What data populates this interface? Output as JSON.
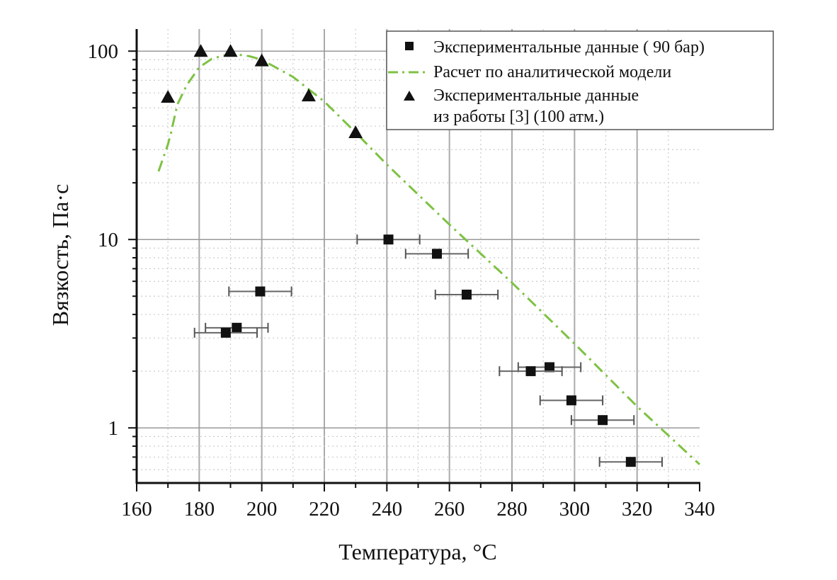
{
  "chart_data": {
    "type": "scatter",
    "xlabel": "Температура, °C",
    "ylabel": "Вязкость, Па·с",
    "xlim": [
      160,
      340
    ],
    "ylim": [
      0.51,
      131
    ],
    "yscale": "log",
    "x_ticks": [
      160,
      180,
      200,
      220,
      240,
      260,
      280,
      300,
      320,
      340
    ],
    "x_tick_labels": [
      "160",
      "180",
      "200",
      "220",
      "240",
      "260",
      "280",
      "300",
      "320",
      "340"
    ],
    "y_ticks": [
      1,
      10,
      100
    ],
    "y_tick_labels": [
      "1",
      "10",
      "100"
    ],
    "grid": true,
    "legend_position": "top-right",
    "series": [
      {
        "name": "Экспериментальные данные ( 90 бар)",
        "type": "scatter",
        "marker": "square",
        "color": "#111111",
        "x": [
          240.5,
          256,
          199.5,
          265.5,
          192,
          188.5,
          292,
          286,
          299,
          309,
          318
        ],
        "y": [
          10,
          8.4,
          5.3,
          5.1,
          3.4,
          3.2,
          2.1,
          2.0,
          1.4,
          1.1,
          0.66
        ],
        "x_error": [
          10,
          10,
          10,
          10,
          10,
          10,
          10,
          10,
          10,
          10,
          10
        ]
      },
      {
        "name": "Расчет по аналитической модели",
        "type": "line",
        "style": "dash-dot",
        "color": "#7dc242",
        "x": [
          167,
          170,
          171,
          173,
          176,
          180,
          184,
          188,
          192,
          196,
          200,
          210,
          220,
          230,
          240,
          260,
          280,
          300,
          320,
          340
        ],
        "y": [
          23,
          32,
          37,
          52,
          66,
          82,
          91,
          95,
          96,
          94,
          90,
          73,
          54,
          37,
          25,
          12,
          5.9,
          2.8,
          1.3,
          0.64
        ]
      },
      {
        "name": "Экспериментальные данные из работы [3] (100 атм.)",
        "legend_lines": [
          "Экспериментальные данные",
          "из работы [3] (100 атм.)"
        ],
        "type": "scatter",
        "marker": "triangle",
        "color": "#111111",
        "x": [
          170,
          180.5,
          190,
          200,
          215,
          230
        ],
        "y": [
          57,
          100,
          100,
          89,
          58,
          37
        ]
      }
    ]
  }
}
